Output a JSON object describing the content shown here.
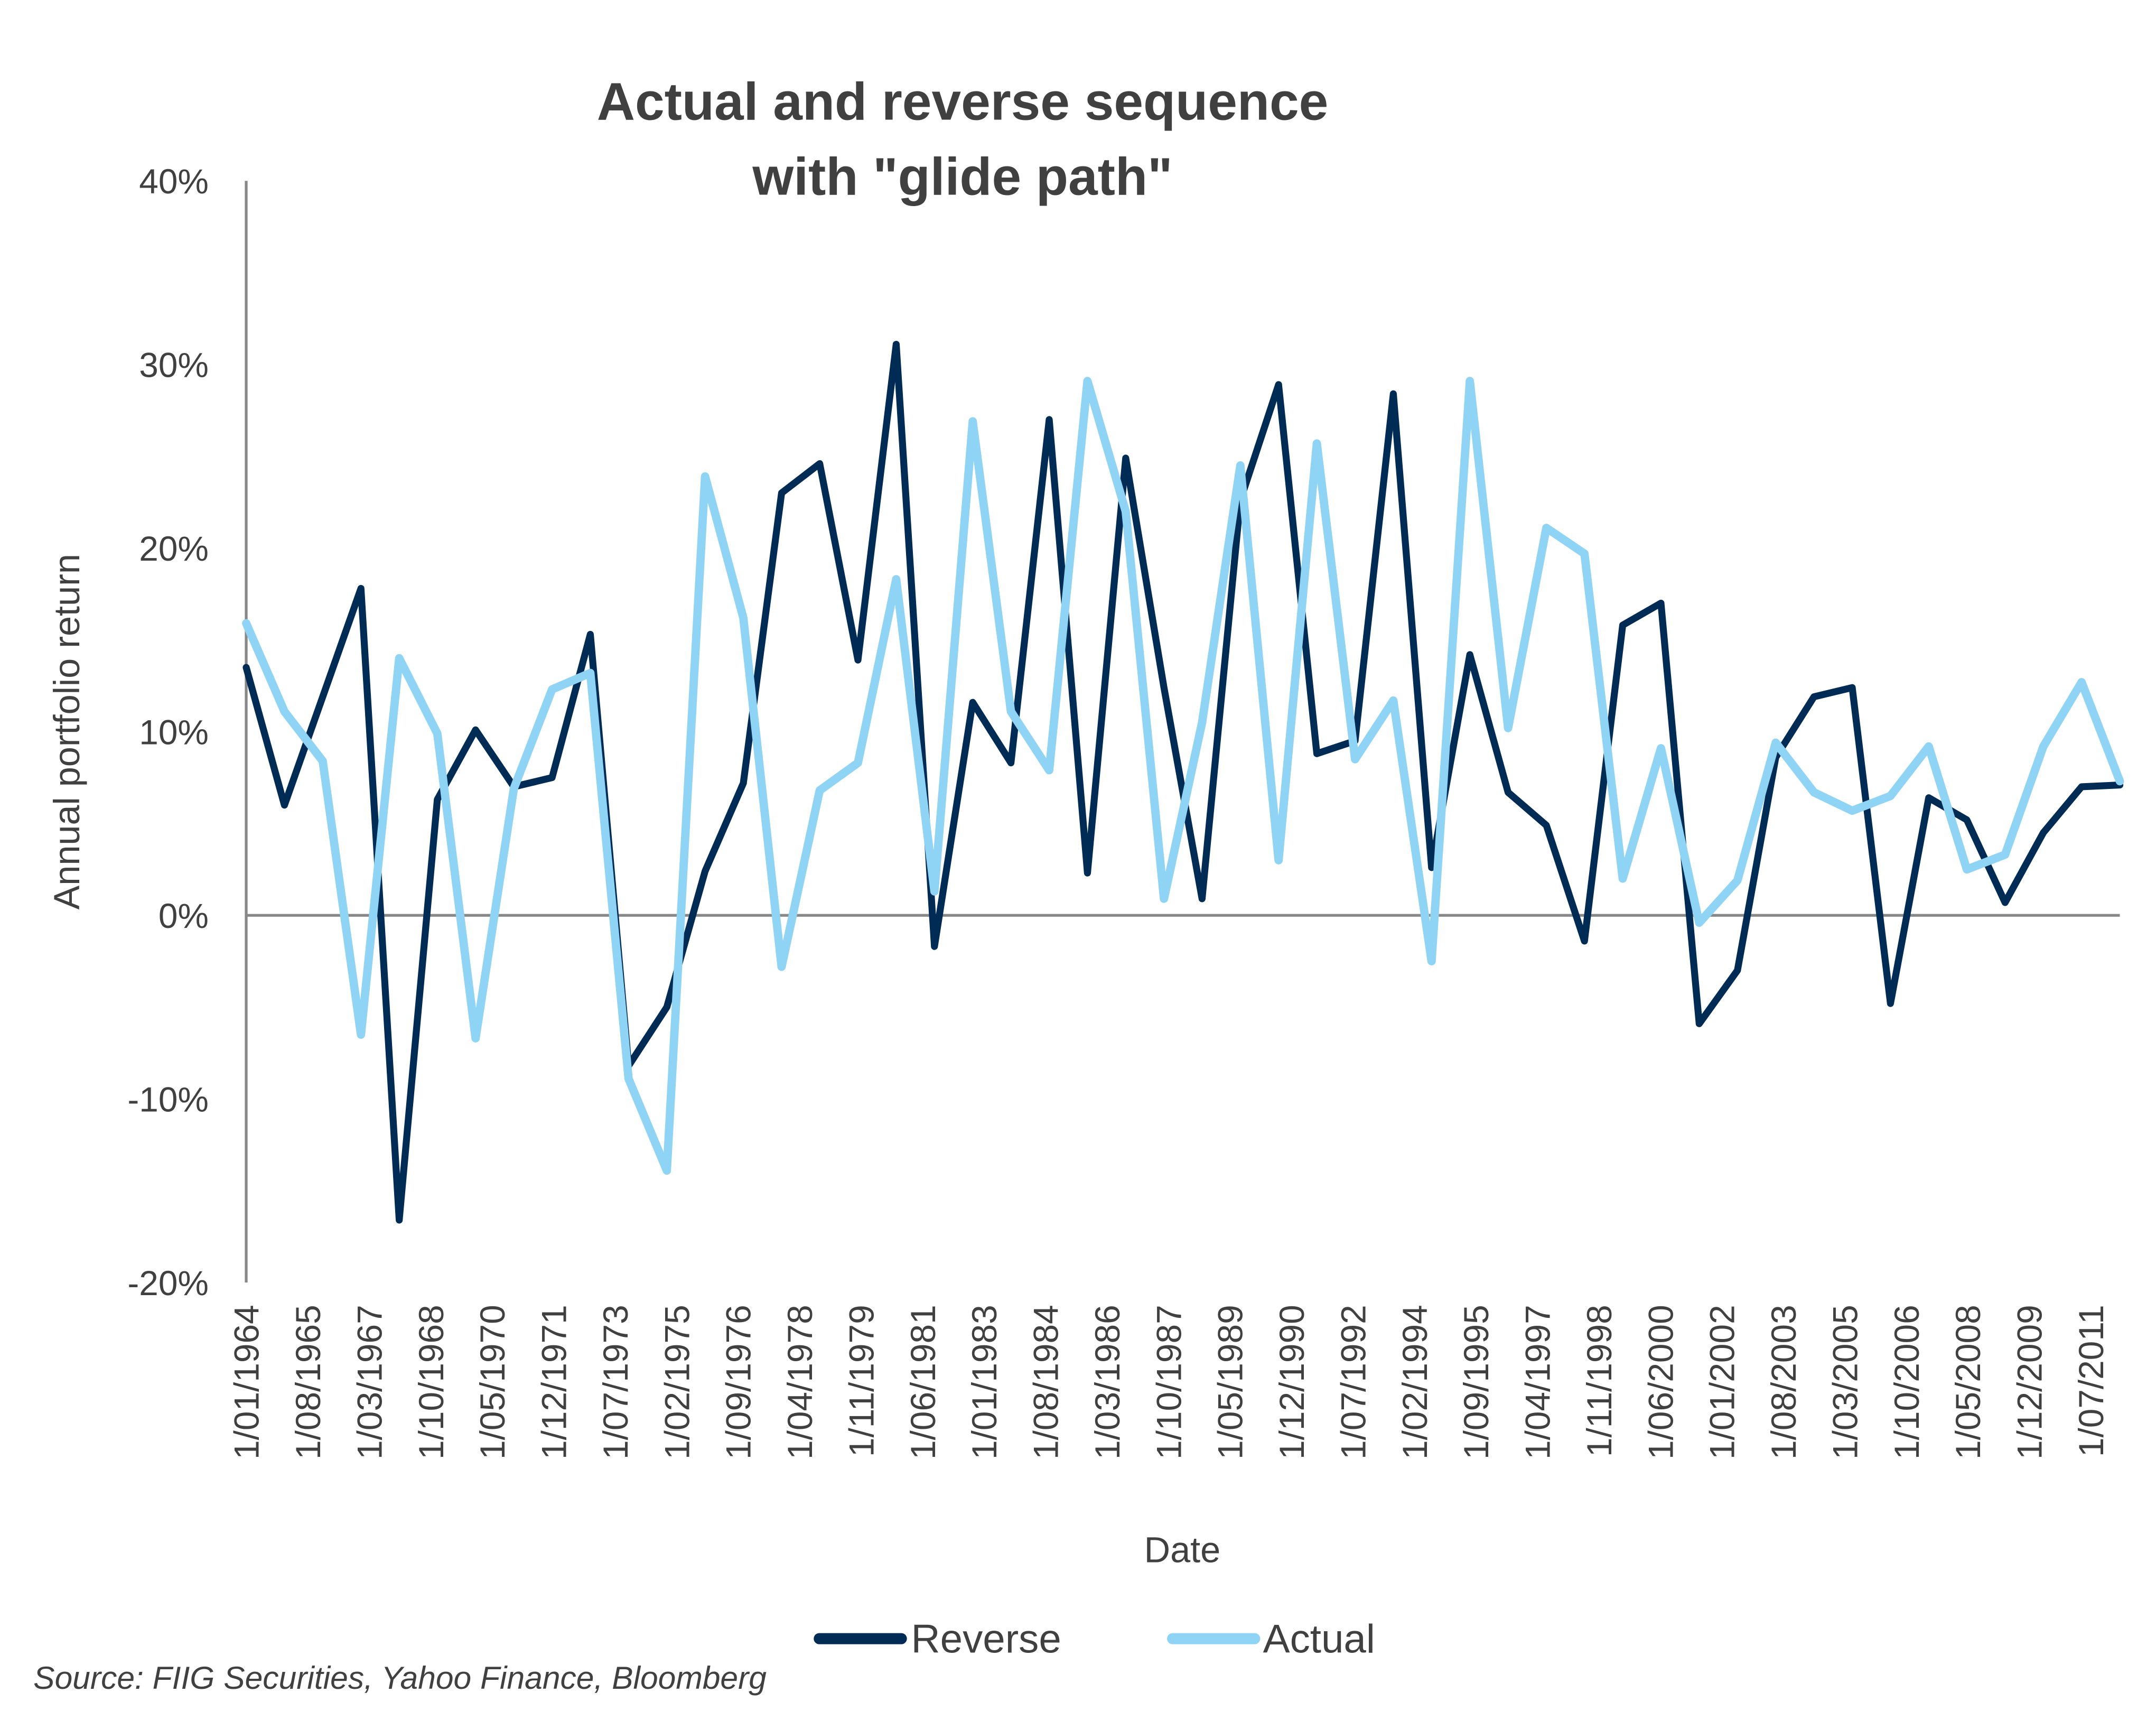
{
  "chart_data": {
    "type": "line",
    "title": [
      "Actual and reverse sequence",
      "with \"glide path\""
    ],
    "xlabel": "Date",
    "ylabel": "Annual portfolio return",
    "ylim": [
      -20,
      40
    ],
    "yticks": [
      40,
      30,
      20,
      10,
      0,
      -10,
      -20
    ],
    "ytick_labels": [
      "40%",
      "30%",
      "20%",
      "10%",
      "0%",
      "-10%",
      "-20%"
    ],
    "grid": false,
    "x_points": 50,
    "x_tick_labels": [
      "1/01/1964",
      "1/08/1965",
      "1/03/1967",
      "1/10/1968",
      "1/05/1970",
      "1/12/1971",
      "1/07/1973",
      "1/02/1975",
      "1/09/1976",
      "1/04/1978",
      "1/11/1979",
      "1/06/1981",
      "1/01/1983",
      "1/08/1984",
      "1/03/1986",
      "1/10/1987",
      "1/05/1989",
      "1/12/1990",
      "1/07/1992",
      "1/02/1994",
      "1/09/1995",
      "1/04/1997",
      "1/11/1998",
      "1/06/2000",
      "1/01/2002",
      "1/08/2003",
      "1/03/2005",
      "1/10/2006",
      "1/05/2008",
      "1/12/2009",
      "1/07/2011"
    ],
    "series": [
      {
        "name": "Reverse",
        "color": "#002B54",
        "values": [
          13.5,
          6.0,
          11.9,
          17.8,
          -16.6,
          6.3,
          10.1,
          7.0,
          7.5,
          15.3,
          -8.2,
          -5.0,
          2.4,
          7.2,
          23.0,
          24.6,
          13.9,
          31.1,
          -1.7,
          11.6,
          8.3,
          27.0,
          2.3,
          24.9,
          12.4,
          0.9,
          22.6,
          28.9,
          8.8,
          9.5,
          28.4,
          2.6,
          14.2,
          6.7,
          4.9,
          -1.4,
          15.8,
          17.0,
          -5.9,
          -3.0,
          8.6,
          11.9,
          12.4,
          -4.8,
          6.4,
          5.2,
          0.7,
          4.5,
          7.0,
          7.1
        ]
      },
      {
        "name": "Actual",
        "color": "#8FD3F5",
        "values": [
          15.9,
          11.1,
          8.4,
          -6.5,
          14.0,
          9.9,
          -6.7,
          6.9,
          12.3,
          13.2,
          -8.9,
          -13.9,
          23.9,
          16.2,
          -2.8,
          6.8,
          8.3,
          18.3,
          1.3,
          26.9,
          11.1,
          7.9,
          29.1,
          22.0,
          0.9,
          10.5,
          24.5,
          3.0,
          25.7,
          8.5,
          11.7,
          -2.5,
          29.1,
          10.2,
          21.1,
          19.7,
          2.0,
          9.1,
          -0.4,
          1.9,
          9.4,
          6.7,
          5.7,
          6.5,
          9.2,
          2.5,
          3.3,
          9.2,
          12.7,
          7.3
        ]
      }
    ],
    "legend": {
      "placement": "bottom-center",
      "entries": [
        "Reverse",
        "Actual"
      ]
    },
    "source_note": "Source: FIIG Securities, Yahoo Finance, Bloomberg",
    "axis_color": "#888888",
    "text_color": "#404040"
  }
}
